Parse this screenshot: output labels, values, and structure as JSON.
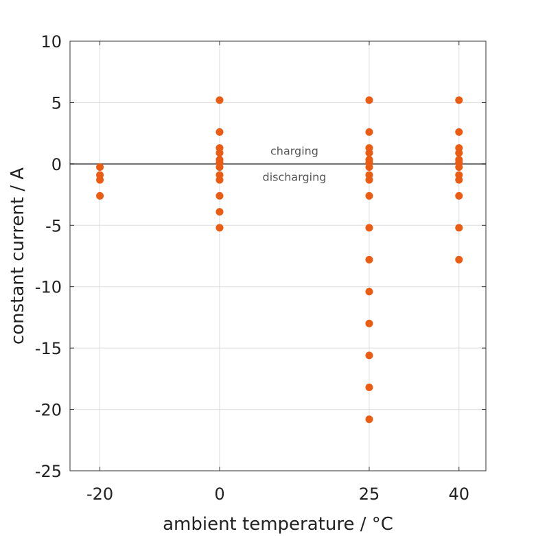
{
  "chart_data": {
    "type": "scatter",
    "xlabel": "ambient temperature / °C",
    "ylabel": "constant current / A",
    "x_ticks": [
      -20,
      0,
      25,
      40
    ],
    "y_ticks": [
      10,
      5,
      0,
      -5,
      -10,
      -15,
      -20,
      -25
    ],
    "xlim": [
      -25,
      44.5
    ],
    "ylim": [
      -25,
      10
    ],
    "grid": true,
    "reference_line": {
      "y": 0,
      "color": "#6b6b6b"
    },
    "annotations": [
      {
        "text": "charging",
        "x": 12.5,
        "y": 0.7
      },
      {
        "text": "discharging",
        "x": 12.5,
        "y": -0.75
      }
    ],
    "marker_color": "#ec5b12",
    "points": [
      {
        "x": -20,
        "y": -0.26
      },
      {
        "x": -20,
        "y": -0.9
      },
      {
        "x": -20,
        "y": -1.3
      },
      {
        "x": -20,
        "y": -2.6
      },
      {
        "x": 0,
        "y": 5.2
      },
      {
        "x": 0,
        "y": 2.6
      },
      {
        "x": 0,
        "y": 1.3
      },
      {
        "x": 0,
        "y": 0.9
      },
      {
        "x": 0,
        "y": 0.35
      },
      {
        "x": 0,
        "y": 0.1
      },
      {
        "x": 0,
        "y": -0.26
      },
      {
        "x": 0,
        "y": -0.9
      },
      {
        "x": 0,
        "y": -1.3
      },
      {
        "x": 0,
        "y": -2.6
      },
      {
        "x": 0,
        "y": -3.9
      },
      {
        "x": 0,
        "y": -5.2
      },
      {
        "x": 25,
        "y": 5.2
      },
      {
        "x": 25,
        "y": 2.6
      },
      {
        "x": 25,
        "y": 1.3
      },
      {
        "x": 25,
        "y": 0.9
      },
      {
        "x": 25,
        "y": 0.35
      },
      {
        "x": 25,
        "y": 0.1
      },
      {
        "x": 25,
        "y": -0.26
      },
      {
        "x": 25,
        "y": -0.9
      },
      {
        "x": 25,
        "y": -1.3
      },
      {
        "x": 25,
        "y": -2.6
      },
      {
        "x": 25,
        "y": -5.2
      },
      {
        "x": 25,
        "y": -7.8
      },
      {
        "x": 25,
        "y": -10.4
      },
      {
        "x": 25,
        "y": -13.0
      },
      {
        "x": 25,
        "y": -15.6
      },
      {
        "x": 25,
        "y": -18.2
      },
      {
        "x": 25,
        "y": -20.8
      },
      {
        "x": 40,
        "y": 5.2
      },
      {
        "x": 40,
        "y": 2.6
      },
      {
        "x": 40,
        "y": 1.3
      },
      {
        "x": 40,
        "y": 0.9
      },
      {
        "x": 40,
        "y": 0.35
      },
      {
        "x": 40,
        "y": 0.1
      },
      {
        "x": 40,
        "y": -0.26
      },
      {
        "x": 40,
        "y": -0.9
      },
      {
        "x": 40,
        "y": -1.3
      },
      {
        "x": 40,
        "y": -2.6
      },
      {
        "x": 40,
        "y": -5.2
      },
      {
        "x": 40,
        "y": -7.8
      }
    ]
  }
}
